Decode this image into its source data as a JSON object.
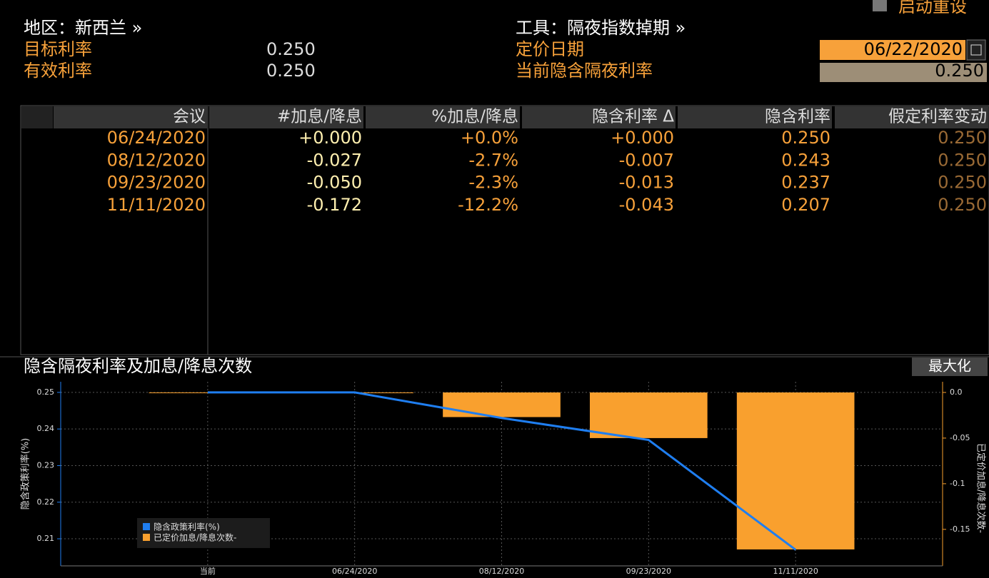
{
  "header": {
    "region": "地区：新西兰 »",
    "tool": "工具：隔夜指数掉期 »",
    "reset": "启动重设",
    "fields": [
      {
        "label": "目标利率",
        "value": "0.250"
      },
      {
        "label": "有效利率",
        "value": "0.250"
      }
    ],
    "pricing_date": {
      "label": "定价日期",
      "value": "06/22/2020"
    },
    "implied_rate": {
      "label": "当前隐含隔夜利率",
      "value": "0.250"
    }
  },
  "table": {
    "columns": [
      "会议",
      "#加息/降息",
      "%加息/降息",
      "隐含利率 Δ",
      "隐含利率",
      "假定利率变动"
    ],
    "rows": [
      [
        "06/24/2020",
        "+0.000",
        "+0.0%",
        "+0.000",
        "0.250",
        "0.250"
      ],
      [
        "08/12/2020",
        "-0.027",
        "-2.7%",
        "-0.007",
        "0.243",
        "0.250"
      ],
      [
        "09/23/2020",
        "-0.050",
        "-2.3%",
        "-0.013",
        "0.237",
        "0.250"
      ],
      [
        "11/11/2020",
        "-0.172",
        "-12.2%",
        "-0.043",
        "0.207",
        "0.250"
      ]
    ]
  },
  "chart_panel": {
    "title": "隐含隔夜利率及加息/降息次数",
    "button": "最大化"
  },
  "chart_data": {
    "type": "combo",
    "categories": [
      "当前",
      "06/24/2020",
      "08/12/2020",
      "09/23/2020",
      "11/11/2020"
    ],
    "series": [
      {
        "name": "隐含政策利率(%)",
        "type": "line",
        "color": "#1f7ef0",
        "values": [
          0.25,
          0.25,
          0.243,
          0.237,
          0.207
        ]
      },
      {
        "name": "已定价加息/降息次数-",
        "type": "bar",
        "axis": "y2",
        "color": "#f9a02e",
        "values": [
          0,
          0,
          -0.027,
          -0.05,
          -0.172
        ]
      }
    ],
    "ylabel": "隐含政策利率(%)",
    "y2label": "已定价加息/降息次数-",
    "ylim": [
      0.2026,
      0.2529
    ],
    "yticks": [
      0.25,
      0.24,
      0.23,
      0.22,
      0.21
    ],
    "y2lim": [
      -0.19,
      0.0117
    ],
    "y2ticks": [
      {
        "value": 0,
        "label": "0.0"
      },
      -0.05,
      -0.1,
      -0.15
    ],
    "grid": true
  }
}
